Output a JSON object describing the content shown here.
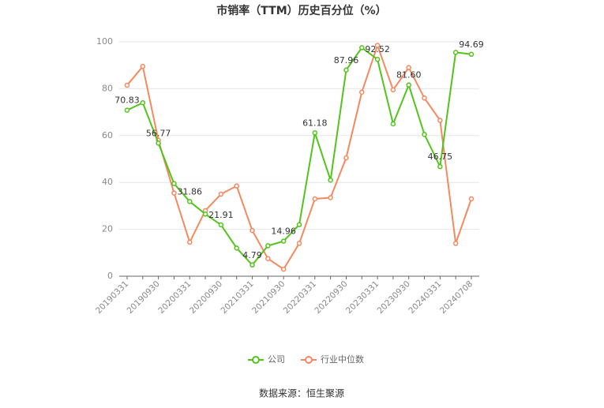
{
  "chart_data": {
    "type": "line",
    "title": "市销率（TTM）历史百分位（%）",
    "source": "数据来源：恒生聚源",
    "categories": [
      "20190331",
      null,
      "20190930",
      null,
      "20200331",
      null,
      "20200930",
      null,
      "20210331",
      null,
      "20210930",
      null,
      "20220331",
      null,
      "20220930",
      null,
      "20230331",
      null,
      "20230930",
      null,
      "20240331",
      null,
      "20240708"
    ],
    "series": [
      {
        "name": "公司",
        "color": "#52c41a",
        "values": [
          70.83,
          74,
          56.77,
          39.5,
          31.86,
          26.5,
          21.91,
          12,
          4.79,
          13,
          14.96,
          22,
          61.18,
          41,
          87.96,
          97.5,
          92.52,
          65,
          81.6,
          60.5,
          46.75,
          95.5,
          94.69
        ],
        "value_labels": [
          "70.83",
          null,
          "56.77",
          null,
          "31.86",
          null,
          "21.91",
          null,
          "4.79",
          null,
          "14.96",
          null,
          "61.18",
          null,
          "87.96",
          null,
          "92.52",
          null,
          "81.60",
          null,
          "46.75",
          null,
          "94.69"
        ]
      },
      {
        "name": "行业中位数",
        "color": "#f4895f",
        "values": [
          81.5,
          89.5,
          58,
          35.5,
          14.5,
          28,
          35,
          38.5,
          19.5,
          7.5,
          3,
          14,
          33,
          33.5,
          50.5,
          78.5,
          98.5,
          79.5,
          89,
          76,
          66.5,
          14,
          33
        ]
      }
    ],
    "ylim": [
      0,
      100
    ],
    "yticks": [
      0,
      20,
      40,
      60,
      80,
      100
    ],
    "grid": true
  }
}
